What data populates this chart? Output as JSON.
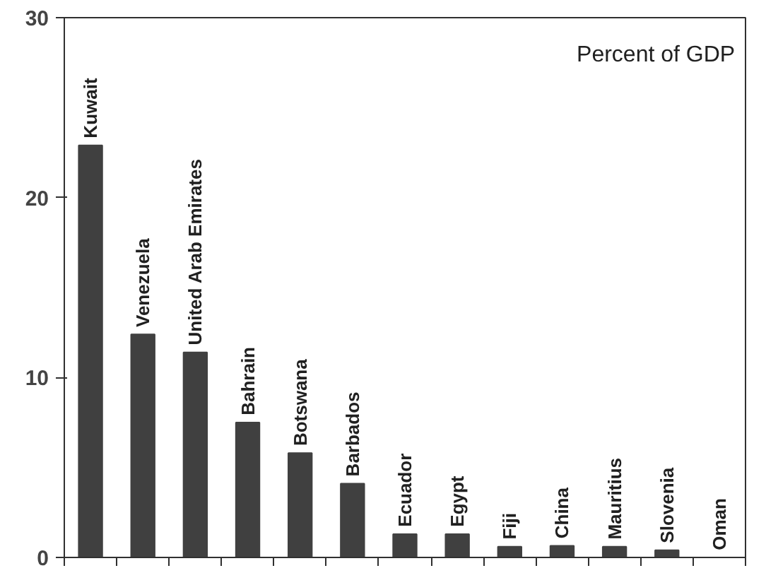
{
  "chart_data": {
    "type": "bar",
    "categories": [
      "Kuwait",
      "Venezuela",
      "United Arab Emirates",
      "Bahrain",
      "Botswana",
      "Barbados",
      "Ecuador",
      "Egypt",
      "Fiji",
      "China",
      "Mauritius",
      "Slovenia",
      "Oman"
    ],
    "values": [
      22.9,
      12.4,
      11.4,
      7.5,
      5.8,
      4.1,
      1.3,
      1.3,
      0.6,
      0.65,
      0.6,
      0.4,
      0
    ],
    "color": "#404040",
    "ylim": [
      0,
      30
    ],
    "yticks": [
      0,
      10,
      20,
      30
    ],
    "grid": false,
    "annotations": [
      "Percent of GDP"
    ]
  }
}
